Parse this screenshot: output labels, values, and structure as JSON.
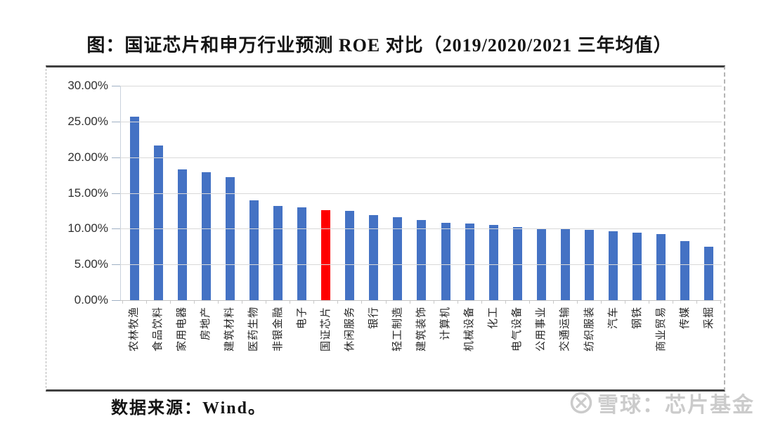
{
  "title": "图：国证芯片和申万行业预测 ROE 对比（2019/2020/2021 三年均值）",
  "source_note": "数据来源：Wind。",
  "watermark": {
    "logo": "xueqiu-circle-x-logo",
    "text": "雪球：芯片基金"
  },
  "chart_data": {
    "type": "bar",
    "title": "国证芯片和申万行业预测ROE对比（2019/2020/2021三年均值）",
    "xlabel": "",
    "ylabel": "",
    "ylim": [
      0,
      30
    ],
    "grid": true,
    "legend": false,
    "yticks": [
      "30.00%",
      "25.00%",
      "20.00%",
      "15.00%",
      "10.00%",
      "5.00%",
      "0.00%"
    ],
    "ytick_values": [
      30,
      25,
      20,
      15,
      10,
      5,
      0
    ],
    "categories": [
      "农林牧渔",
      "食品饮料",
      "家用电器",
      "房地产",
      "建筑材料",
      "医药生物",
      "非银金融",
      "电子",
      "国证芯片",
      "休闲服务",
      "银行",
      "轻工制造",
      "建筑装饰",
      "计算机",
      "机械设备",
      "化工",
      "电气设备",
      "公用事业",
      "交通运输",
      "纺织服装",
      "汽车",
      "钢铁",
      "商业贸易",
      "传媒",
      "采掘"
    ],
    "values": [
      25.7,
      21.6,
      18.3,
      17.9,
      17.2,
      14.0,
      13.2,
      13.0,
      12.6,
      12.5,
      11.9,
      11.6,
      11.2,
      10.8,
      10.7,
      10.5,
      10.2,
      10.0,
      9.9,
      9.8,
      9.6,
      9.4,
      9.2,
      8.3,
      7.5
    ],
    "bar_color": "#4472c4",
    "highlight": {
      "category": "国证芯片",
      "index": 8,
      "color": "#fe0000"
    }
  }
}
